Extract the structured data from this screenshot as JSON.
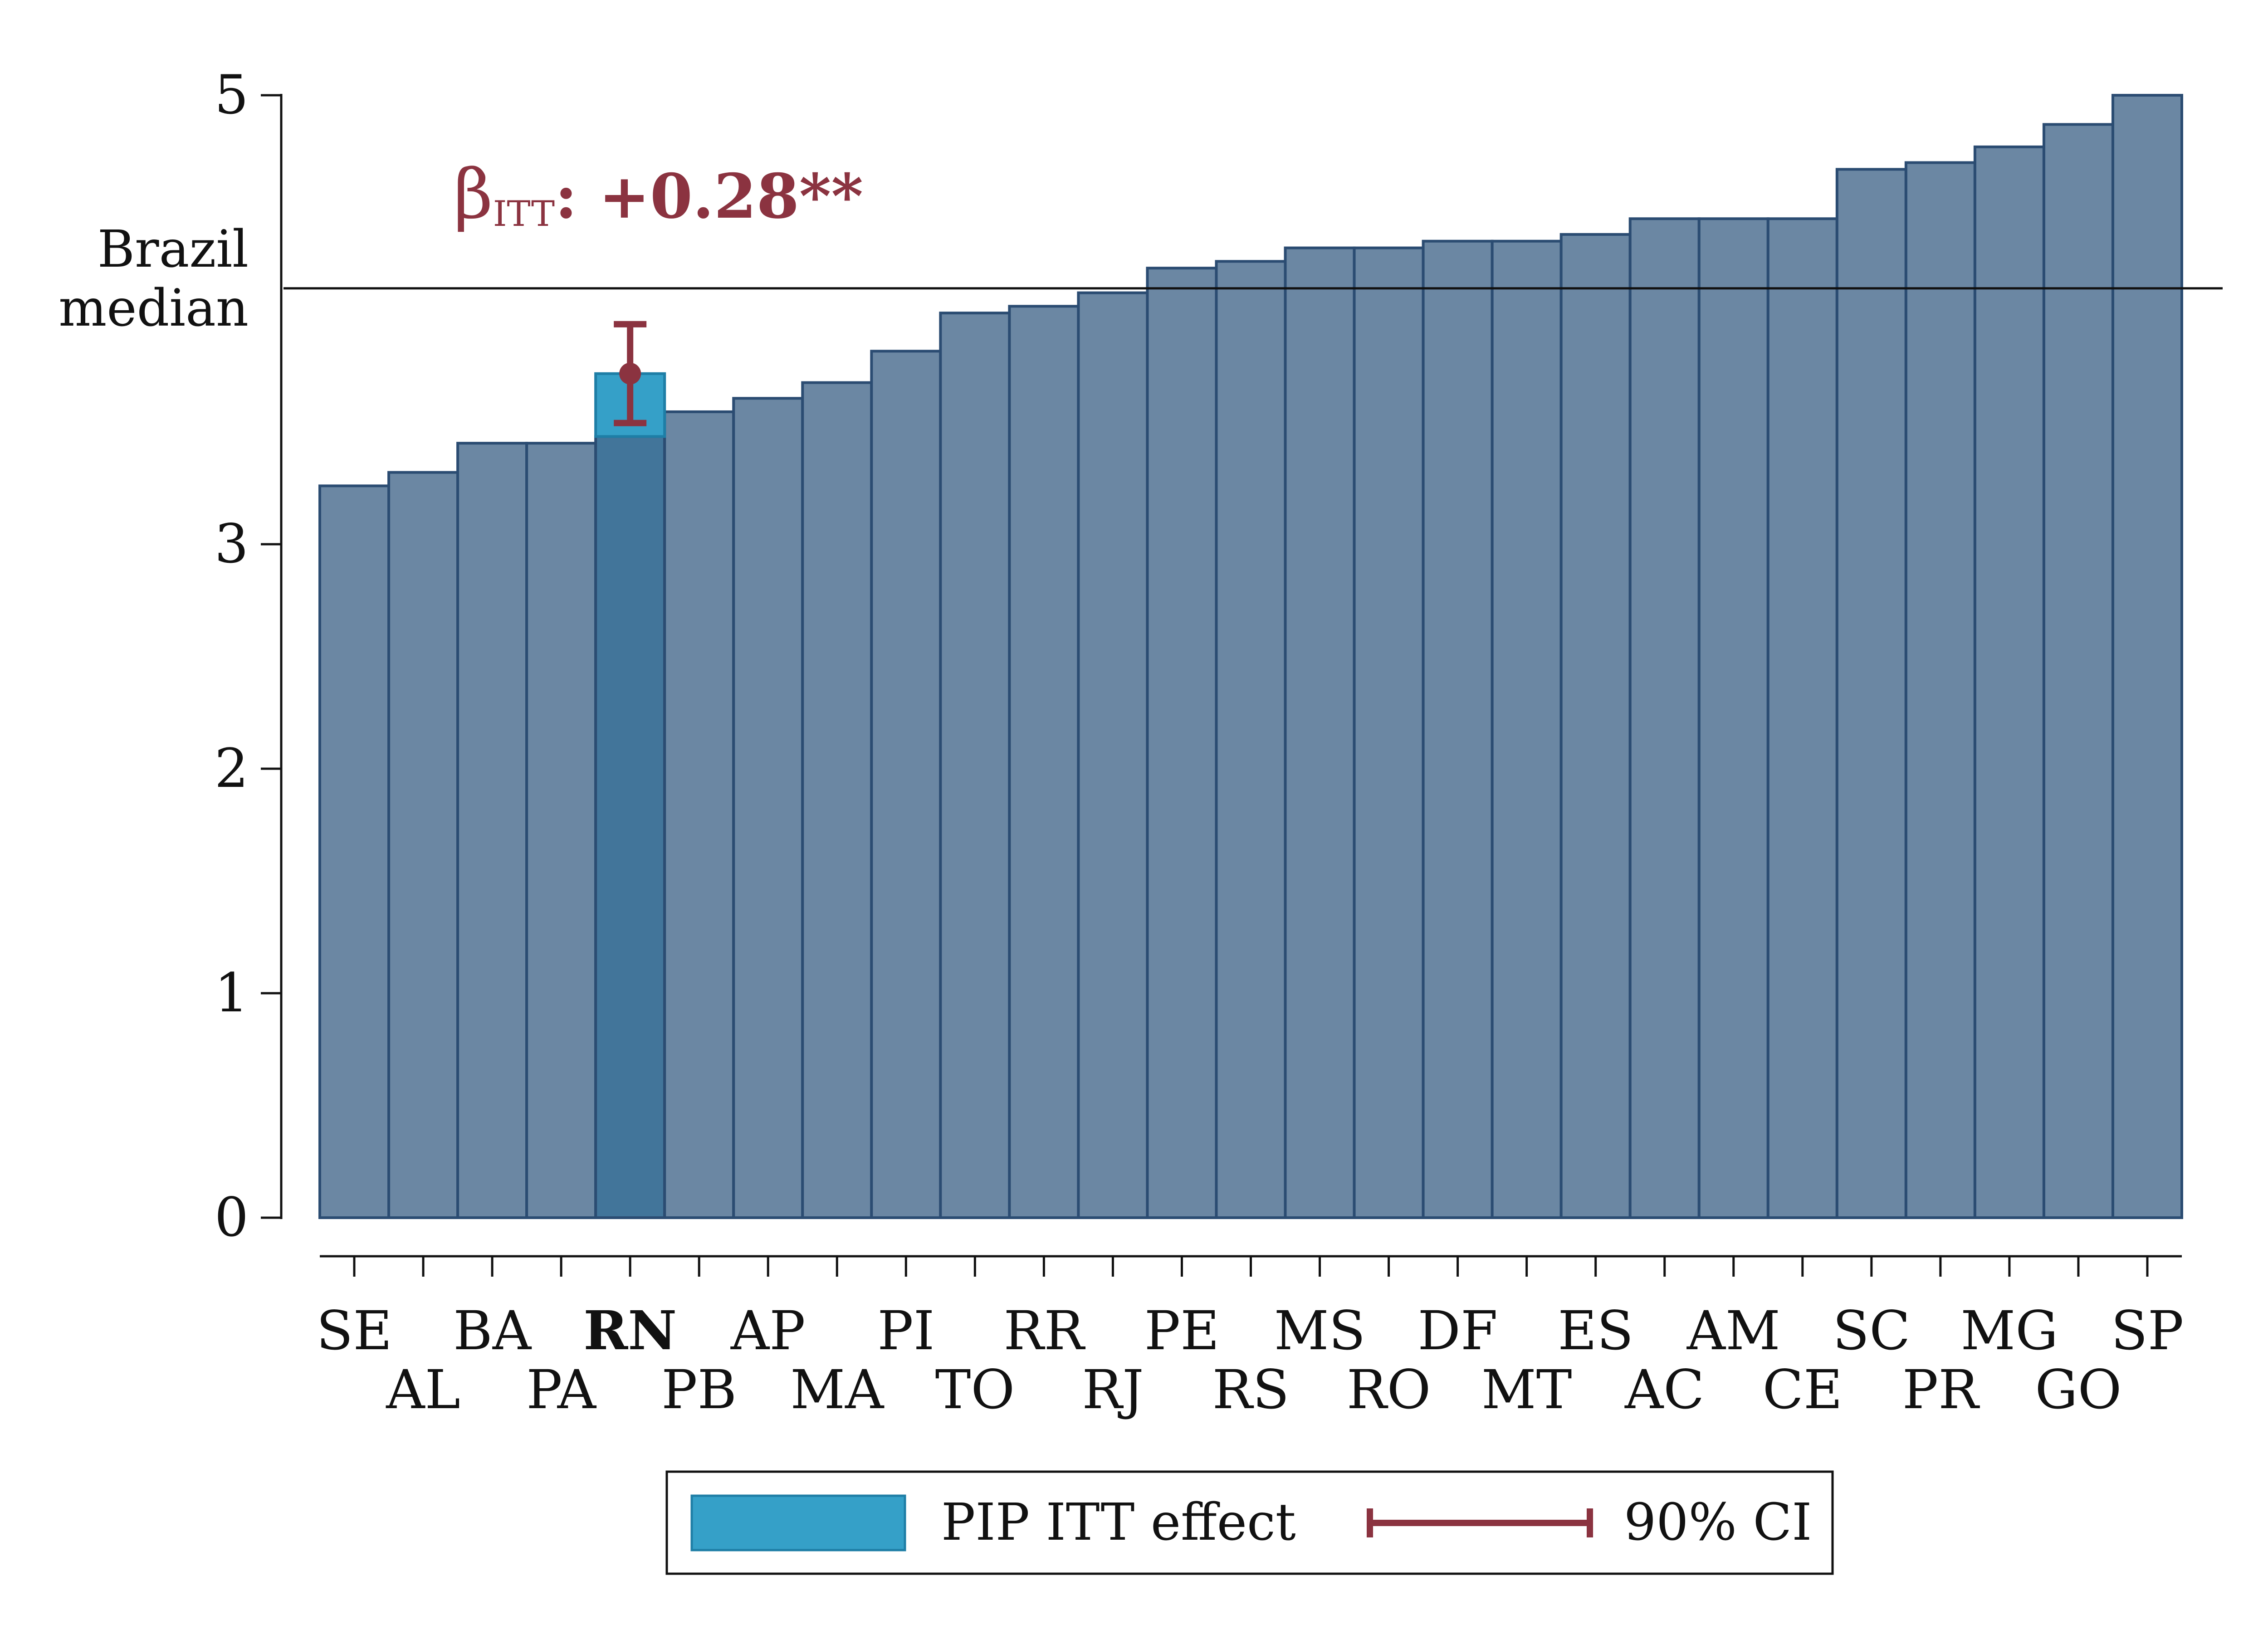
{
  "colors": {
    "bar_fill": "#6b87a3",
    "bar_stroke": "#2b4c72",
    "highlight_fill": "#42759a",
    "effect_fill": "#35a0c8",
    "effect_stroke": "#1e7ea6",
    "ci_color": "#8b3340",
    "axis_color": "#111111"
  },
  "chart_data": {
    "type": "bar",
    "categories": [
      "SE",
      "AL",
      "BA",
      "PA",
      "RN",
      "PB",
      "AP",
      "MA",
      "PI",
      "TO",
      "RR",
      "RJ",
      "PE",
      "RS",
      "MS",
      "RO",
      "DF",
      "MT",
      "ES",
      "AC",
      "AM",
      "CE",
      "SC",
      "PR",
      "MG",
      "GO",
      "SP"
    ],
    "values": [
      3.26,
      3.32,
      3.45,
      3.45,
      3.48,
      3.59,
      3.65,
      3.72,
      3.86,
      4.03,
      4.06,
      4.12,
      4.23,
      4.26,
      4.32,
      4.32,
      4.35,
      4.35,
      4.38,
      4.45,
      4.45,
      4.45,
      4.67,
      4.7,
      4.77,
      4.87,
      5.0
    ],
    "highlight": "RN",
    "ylim": [
      0,
      5
    ],
    "yticks": [
      0,
      1,
      2,
      3,
      5
    ],
    "reference_line": {
      "value": 4.14,
      "label_line1": "Brazil",
      "label_line2": "median"
    },
    "effect": {
      "category": "RN",
      "itt_effect": 0.28,
      "point": 3.76,
      "ci_low": 3.54,
      "ci_high": 3.98
    },
    "annotation": {
      "symbol": "β",
      "subscript": "ITT",
      "text": ": +0.28**"
    },
    "legend": {
      "position": "bottom",
      "items": [
        {
          "label": "PIP ITT effect",
          "kind": "bar"
        },
        {
          "label": "90% CI",
          "kind": "ci"
        }
      ]
    },
    "title": "",
    "xlabel": "",
    "ylabel": ""
  }
}
